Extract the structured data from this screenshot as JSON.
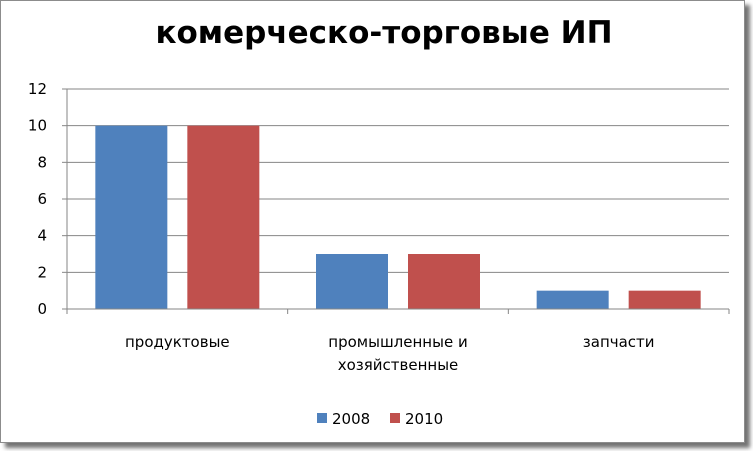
{
  "chart_data": {
    "type": "bar",
    "title": "комерческо-торговые ИП",
    "xlabel": "",
    "ylabel": "",
    "ylim": [
      0,
      12
    ],
    "yticks": [
      0,
      2,
      4,
      6,
      8,
      10,
      12
    ],
    "grid": true,
    "legend_position": "bottom",
    "categories": [
      [
        "продуктовые"
      ],
      [
        "промышленные и",
        "хозяйственные"
      ],
      [
        "запчасти"
      ]
    ],
    "series": [
      {
        "name": "2008",
        "color": "#4f81bd",
        "values": [
          10,
          3,
          1
        ]
      },
      {
        "name": "2010",
        "color": "#c0504d",
        "values": [
          10,
          3,
          1
        ]
      }
    ]
  }
}
